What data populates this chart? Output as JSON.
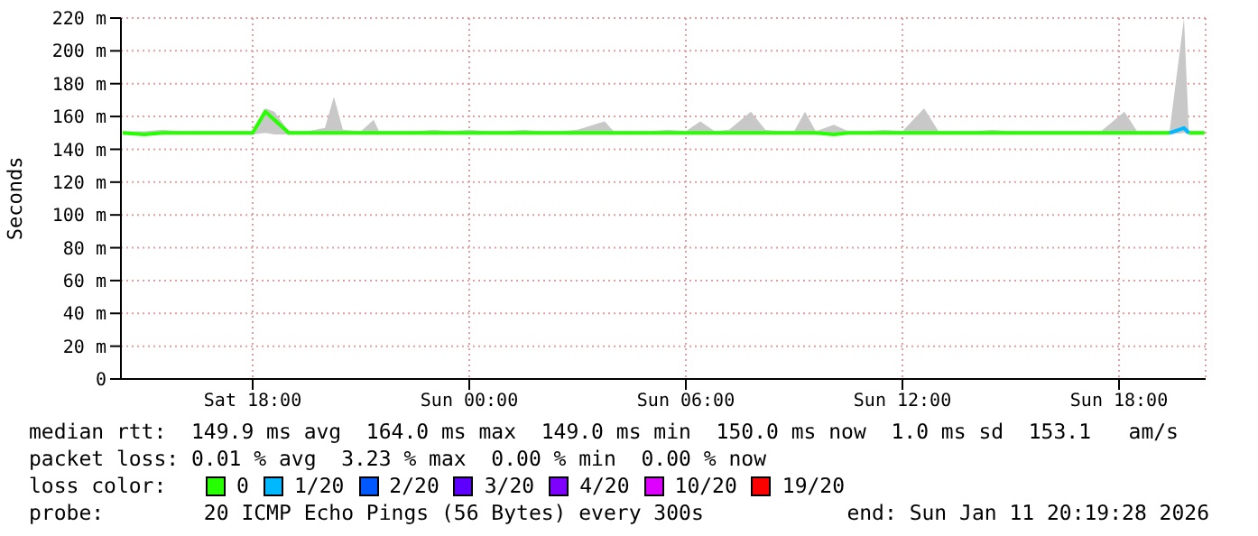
{
  "chart_data": {
    "type": "line",
    "ylabel": "Seconds",
    "xlim": [
      "2026-01-10T14:21",
      "2026-01-11T20:24"
    ],
    "xticks": [
      {
        "value": "2026-01-10T18:00",
        "label": "Sat 18:00"
      },
      {
        "value": "2026-01-11T00:00",
        "label": "Sun 00:00"
      },
      {
        "value": "2026-01-11T06:00",
        "label": "Sun 06:00"
      },
      {
        "value": "2026-01-11T12:00",
        "label": "Sun 12:00"
      },
      {
        "value": "2026-01-11T18:00",
        "label": "Sun 18:00"
      }
    ],
    "ylim": [
      0,
      220
    ],
    "yticks": [
      0,
      {
        "value": 20,
        "label": "20 m"
      },
      {
        "value": 40,
        "label": "40 m"
      },
      {
        "value": 60,
        "label": "60 m"
      },
      {
        "value": 80,
        "label": "80 m"
      },
      {
        "value": 100,
        "label": "100 m"
      },
      {
        "value": 120,
        "label": "120 m"
      },
      {
        "value": 140,
        "label": "140 m"
      },
      {
        "value": 160,
        "label": "160 m"
      },
      {
        "value": 180,
        "label": "180 m"
      },
      {
        "value": 200,
        "label": "200 m"
      },
      {
        "value": 220,
        "label": "220 m"
      }
    ],
    "grid": true,
    "legend": "bottom",
    "legend_title": "loss color:",
    "series": [
      {
        "name": "0",
        "color": "#26ff00",
        "x": [
          "2026-01-10T14:24",
          "2026-01-10T15:00",
          "2026-01-10T15:30",
          "2026-01-10T16:00",
          "2026-01-10T16:30",
          "2026-01-10T17:00",
          "2026-01-10T17:30",
          "2026-01-10T18:00",
          "2026-01-10T18:21",
          "2026-01-10T18:36",
          "2026-01-10T19:00",
          "2026-01-10T19:30",
          "2026-01-10T20:00",
          "2026-01-10T20:15",
          "2026-01-10T20:30",
          "2026-01-10T21:00",
          "2026-01-10T21:21",
          "2026-01-10T21:30",
          "2026-01-10T22:00",
          "2026-01-10T22:30",
          "2026-01-10T23:00",
          "2026-01-10T23:30",
          "2026-01-11T00:00",
          "2026-01-11T00:30",
          "2026-01-11T01:00",
          "2026-01-11T01:30",
          "2026-01-11T02:00",
          "2026-01-11T02:30",
          "2026-01-11T03:00",
          "2026-01-11T03:45",
          "2026-01-11T04:00",
          "2026-01-11T04:30",
          "2026-01-11T05:00",
          "2026-01-11T05:30",
          "2026-01-11T06:00",
          "2026-01-11T06:24",
          "2026-01-11T06:48",
          "2026-01-11T07:12",
          "2026-01-11T07:48",
          "2026-01-11T08:12",
          "2026-01-11T08:36",
          "2026-01-11T09:00",
          "2026-01-11T09:18",
          "2026-01-11T09:36",
          "2026-01-11T10:06",
          "2026-01-11T10:30",
          "2026-01-11T11:00",
          "2026-01-11T11:30",
          "2026-01-11T12:00",
          "2026-01-11T12:36",
          "2026-01-11T13:00",
          "2026-01-11T13:30",
          "2026-01-11T14:00",
          "2026-01-11T14:30",
          "2026-01-11T15:00",
          "2026-01-11T15:30",
          "2026-01-11T16:00",
          "2026-01-11T16:30",
          "2026-01-11T17:00",
          "2026-01-11T17:30",
          "2026-01-11T18:09",
          "2026-01-11T18:30",
          "2026-01-11T19:00",
          "2026-01-11T19:24",
          "2026-01-11T19:48",
          "2026-01-11T19:56",
          "2026-01-11T20:22"
        ],
        "values": [
          150,
          149,
          150,
          150,
          150,
          150,
          150,
          150,
          163,
          158,
          150,
          150,
          150,
          150,
          150,
          150,
          150,
          150,
          150,
          150,
          150,
          150,
          150,
          150,
          150,
          150,
          150,
          150,
          150,
          150,
          150,
          150,
          150,
          150,
          150,
          150,
          150,
          150,
          150,
          150,
          150,
          150,
          150,
          150,
          149,
          150,
          150,
          150,
          150,
          150,
          150,
          150,
          150,
          150,
          150,
          150,
          150,
          150,
          150,
          150,
          150,
          150,
          150,
          150,
          null,
          150,
          150
        ],
        "lower": [
          149,
          149,
          149,
          149,
          149,
          149,
          149,
          149,
          150,
          149,
          149,
          149,
          149,
          149,
          149,
          149,
          149,
          149,
          149,
          149,
          149,
          149,
          149,
          149,
          149,
          149,
          149,
          149,
          149,
          149,
          149,
          149,
          149,
          149,
          149,
          149,
          149,
          149,
          149,
          149,
          149,
          149,
          149,
          149,
          149,
          149,
          149,
          149,
          149,
          149,
          149,
          149,
          149,
          149,
          149,
          149,
          149,
          149,
          149,
          149,
          149,
          149,
          149,
          149,
          150,
          149,
          149
        ],
        "upper": [
          151,
          151,
          152,
          151,
          151,
          151,
          151,
          151,
          165,
          163,
          151,
          151,
          153,
          172,
          152,
          151,
          158,
          151,
          151,
          151,
          152,
          151,
          152,
          151,
          151,
          152,
          151,
          151,
          152,
          157,
          151,
          151,
          151,
          152,
          151,
          157,
          151,
          152,
          163,
          152,
          151,
          151,
          163,
          151,
          155,
          151,
          151,
          152,
          151,
          165,
          151,
          151,
          151,
          152,
          151,
          151,
          151,
          151,
          151,
          151,
          163,
          151,
          151,
          151,
          220,
          151,
          151
        ]
      },
      {
        "name": "1/20",
        "color": "#00b8ff",
        "x": [
          "2026-01-11T19:24",
          "2026-01-11T19:48",
          "2026-01-11T19:56"
        ],
        "values": [
          150,
          153,
          150
        ]
      },
      {
        "name": "2/20",
        "color": "#0059ff"
      },
      {
        "name": "3/20",
        "color": "#5e00ff"
      },
      {
        "name": "4/20",
        "color": "#7e00ff"
      },
      {
        "name": "10/20",
        "color": "#dd00ff"
      },
      {
        "name": "19/20",
        "color": "#ff0000"
      }
    ],
    "annotations": [
      "median rtt:  149.9 ms avg  164.0 ms max  149.0 ms min  150.0 ms now  1.0 ms sd  153.1   am/s",
      "packet loss: 0.01 % avg  3.23 % max  0.00 % min  0.00 % now",
      "probe:        20 ICMP Echo Pings (56 Bytes) every 300s",
      "end: Sun Jan 11 20:19:28 2026"
    ]
  }
}
